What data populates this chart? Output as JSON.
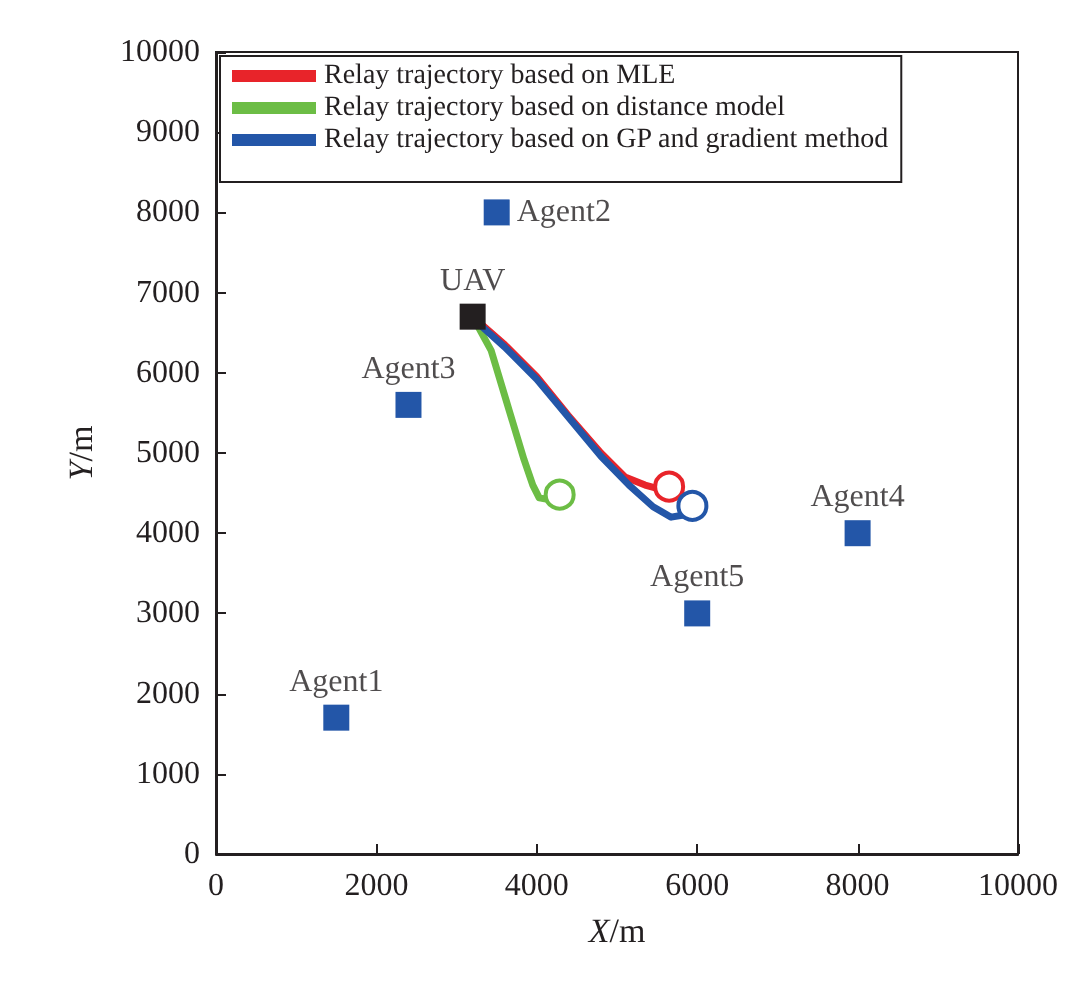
{
  "chart_data": {
    "type": "line",
    "xlabel": "X/m",
    "ylabel": "Y/m",
    "xlim": [
      0,
      10000
    ],
    "ylim": [
      0,
      10000
    ],
    "xticks": [
      0,
      2000,
      4000,
      6000,
      8000,
      10000
    ],
    "yticks": [
      0,
      1000,
      2000,
      3000,
      4000,
      5000,
      6000,
      7000,
      8000,
      9000,
      10000
    ],
    "grid": false,
    "legend": "top left",
    "marker": "none",
    "line_style": "solid",
    "series": [
      {
        "name": "Relay trajectory based on MLE",
        "color": "#e8242a",
        "x": [
          3200,
          3600,
          4000,
          4390,
          4800,
          5100,
          5350,
          5500,
          5650
        ],
        "values": [
          6700,
          6350,
          5950,
          5470,
          5000,
          4700,
          4600,
          4560,
          4580
        ]
      },
      {
        "name": "Relay trajectory based on distance model",
        "color": "#6cbd45",
        "x": [
          3200,
          3430,
          3650,
          3840,
          3950,
          4030,
          4150,
          4285
        ],
        "values": [
          6700,
          6280,
          5550,
          4920,
          4600,
          4440,
          4420,
          4480
        ]
      },
      {
        "name": "Relay trajectory based on GP and gradient method",
        "color": "#2356a8",
        "x": [
          3200,
          3600,
          4000,
          4400,
          4800,
          5150,
          5450,
          5675,
          5850,
          5940
        ],
        "values": [
          6680,
          6320,
          5920,
          5440,
          4960,
          4600,
          4330,
          4200,
          4230,
          4340
        ]
      },
      {
        "type": "scatter",
        "marker": "square",
        "color": "#2356a8",
        "x": [
          1500,
          3500,
          2400,
          8000,
          6000
        ],
        "values": [
          1700,
          8000,
          5600,
          4000,
          3000
        ]
      },
      {
        "type": "scatter",
        "marker": "square",
        "color": "#231f20",
        "x": [
          3200
        ],
        "values": [
          6700
        ]
      }
    ],
    "annotations": [
      {
        "text": "Agent1",
        "x": 1500,
        "y": 1700
      },
      {
        "text": "Agent2",
        "x": 3500,
        "y": 8000
      },
      {
        "text": "Agent3",
        "x": 2400,
        "y": 5600
      },
      {
        "text": "Agent4",
        "x": 8000,
        "y": 4000
      },
      {
        "text": "Agent5",
        "x": 6000,
        "y": 3000
      },
      {
        "text": "UAV",
        "x": 3200,
        "y": 6700
      }
    ]
  }
}
